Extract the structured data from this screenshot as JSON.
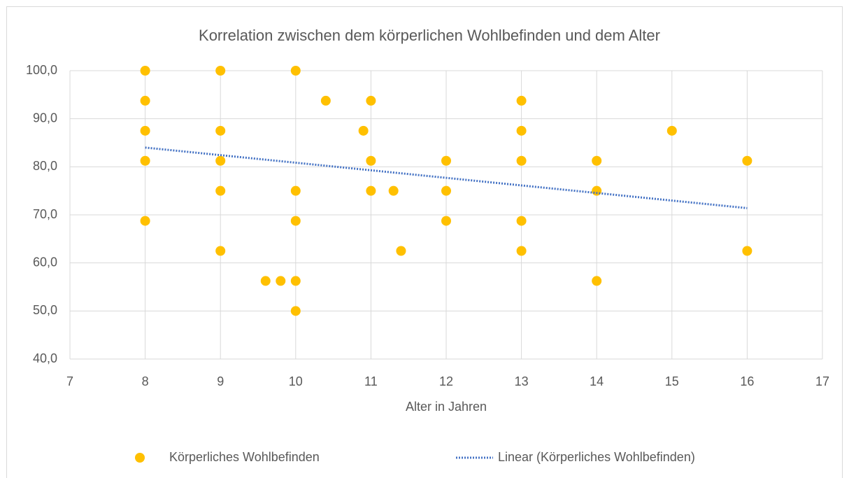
{
  "chart_data": {
    "type": "scatter",
    "title": "Korrelation zwischen dem körperlichen Wohlbefinden und dem Alter",
    "x_label": "Alter in Jahren",
    "series": [
      {
        "name": "Körperliches Wohlbefinden",
        "color": "#ffc000",
        "x": [
          8,
          8,
          8,
          8,
          8,
          9,
          9,
          9,
          9,
          9,
          10,
          10,
          10,
          10,
          10,
          9.6,
          9.8,
          10.4,
          10.9,
          11,
          11,
          11,
          11.3,
          11.4,
          12,
          12,
          12,
          13,
          13,
          13,
          13,
          13,
          14,
          14,
          14,
          15,
          16,
          16
        ],
        "values": [
          100,
          93.75,
          87.5,
          81.25,
          68.75,
          100,
          87.5,
          81.25,
          75,
          62.5,
          100,
          75,
          68.75,
          56.25,
          50,
          56.25,
          56.25,
          93.75,
          87.5,
          93.75,
          81.25,
          75,
          75,
          62.5,
          81.25,
          75,
          68.75,
          93.75,
          87.5,
          81.25,
          68.75,
          62.5,
          81.25,
          75,
          56.25,
          87.5,
          81.25,
          62.5
        ]
      }
    ],
    "trendline": {
      "name": "Linear (Körperliches Wohlbefinden)",
      "color": "#4472c4",
      "x": [
        8,
        16
      ],
      "values": [
        84.0,
        71.4
      ]
    },
    "xlim": [
      7,
      17
    ],
    "xticks": [
      7,
      8,
      9,
      10,
      11,
      12,
      13,
      14,
      15,
      16,
      17
    ],
    "ylim": [
      40,
      100
    ],
    "yticks": [
      {
        "value": 40,
        "label": "40,0"
      },
      {
        "value": 50,
        "label": "50,0"
      },
      {
        "value": 60,
        "label": "60,0"
      },
      {
        "value": 70,
        "label": "70,0"
      },
      {
        "value": 80,
        "label": "80,0"
      },
      {
        "value": 90,
        "label": "90,0"
      },
      {
        "value": 100,
        "label": "100,0"
      }
    ],
    "grid": true
  }
}
